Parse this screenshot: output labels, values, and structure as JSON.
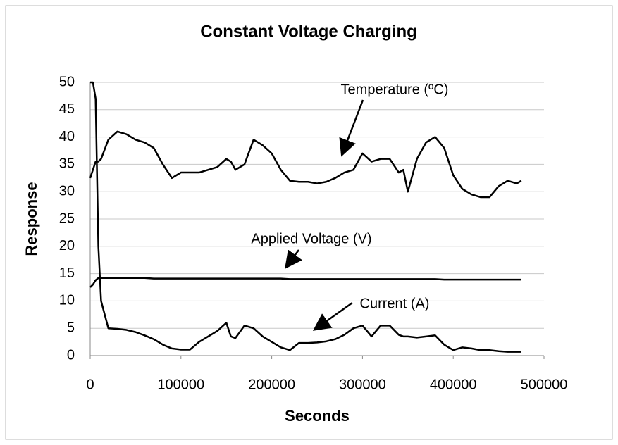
{
  "chart_data": {
    "type": "line",
    "title": "Constant Voltage Charging",
    "x_label": "Seconds",
    "y_label": "Response",
    "annotations": [
      "Temperature (ºC)",
      "Applied Voltage (V)",
      "Current (A)"
    ],
    "x": [
      0,
      3000,
      6000,
      9000,
      12000,
      20000,
      30000,
      40000,
      50000,
      60000,
      70000,
      80000,
      90000,
      100000,
      110000,
      120000,
      130000,
      140000,
      150000,
      155000,
      160000,
      170000,
      180000,
      190000,
      200000,
      210000,
      220000,
      230000,
      240000,
      250000,
      260000,
      270000,
      280000,
      290000,
      300000,
      310000,
      320000,
      330000,
      340000,
      345000,
      350000,
      360000,
      370000,
      380000,
      390000,
      400000,
      410000,
      420000,
      430000,
      440000,
      450000,
      460000,
      470000,
      475000
    ],
    "series": [
      {
        "name": "Temperature (ºC)",
        "color": "#000000",
        "values": [
          32.5,
          34,
          35.5,
          35.5,
          36,
          39.5,
          41,
          40.5,
          39.5,
          39,
          38,
          35,
          32.5,
          33.5,
          33.5,
          33.5,
          34,
          34.5,
          36,
          35.5,
          34,
          35,
          39.5,
          38.5,
          37,
          34,
          32,
          31.8,
          31.8,
          31.5,
          31.8,
          32.5,
          33.5,
          34,
          37,
          35.5,
          36,
          36,
          33.5,
          34,
          30,
          36,
          39,
          40,
          38,
          33,
          30.5,
          29.5,
          29,
          29,
          31,
          32,
          31.5,
          32
        ]
      },
      {
        "name": "Applied Voltage (V)",
        "color": "#000000",
        "values": [
          12.5,
          13,
          13.8,
          14.2,
          14.2,
          14.2,
          14.2,
          14.2,
          14.2,
          14.2,
          14.1,
          14.1,
          14.1,
          14.1,
          14.1,
          14.1,
          14.1,
          14.1,
          14.1,
          14.1,
          14.1,
          14.1,
          14.1,
          14.1,
          14.1,
          14.1,
          14,
          14,
          14,
          14,
          14,
          14,
          14,
          14,
          14,
          14,
          14,
          14,
          14,
          14,
          14,
          14,
          14,
          14,
          13.9,
          13.9,
          13.9,
          13.9,
          13.9,
          13.9,
          13.9,
          13.9,
          13.9,
          13.9
        ]
      },
      {
        "name": "Current (A)",
        "color": "#000000",
        "values": [
          50,
          50,
          47,
          20,
          10,
          5,
          4.9,
          4.7,
          4.3,
          3.7,
          3,
          2,
          1.3,
          1.1,
          1.1,
          2.5,
          3.5,
          4.5,
          6,
          3.5,
          3.2,
          5.5,
          5,
          3.5,
          2.5,
          1.5,
          1,
          2.3,
          2.3,
          2.4,
          2.6,
          3,
          3.8,
          5,
          5.5,
          3.5,
          5.5,
          5.5,
          3.8,
          3.5,
          3.5,
          3.3,
          3.5,
          3.7,
          2,
          1,
          1.5,
          1.3,
          1,
          1,
          0.8,
          0.7,
          0.7,
          0.7
        ]
      }
    ],
    "xlim": [
      0,
      500000
    ],
    "xticks": [
      0,
      100000,
      200000,
      300000,
      400000,
      500000
    ],
    "ylim": [
      0,
      50
    ],
    "yticks": [
      0,
      5,
      10,
      15,
      20,
      25,
      30,
      35,
      40,
      45,
      50
    ],
    "grid": true
  }
}
